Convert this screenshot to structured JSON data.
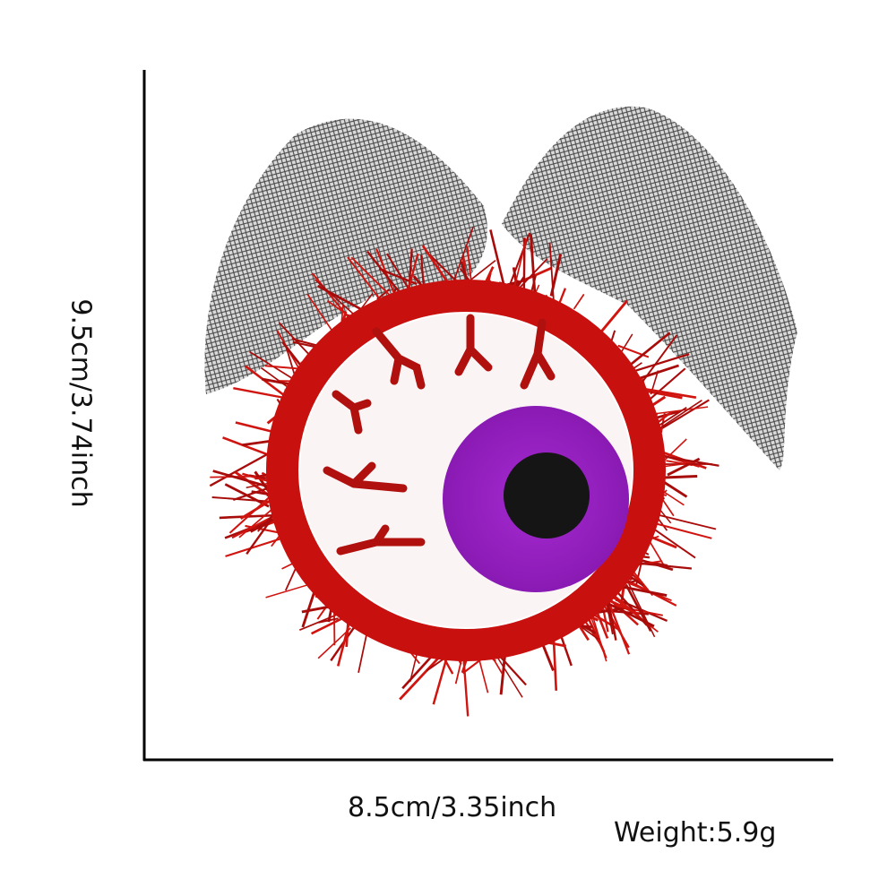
{
  "dimensions": {
    "width": "8.5cm/3.35inch",
    "height": "9.5cm/3.74inch",
    "weight": "Weight:5.9g"
  }
}
